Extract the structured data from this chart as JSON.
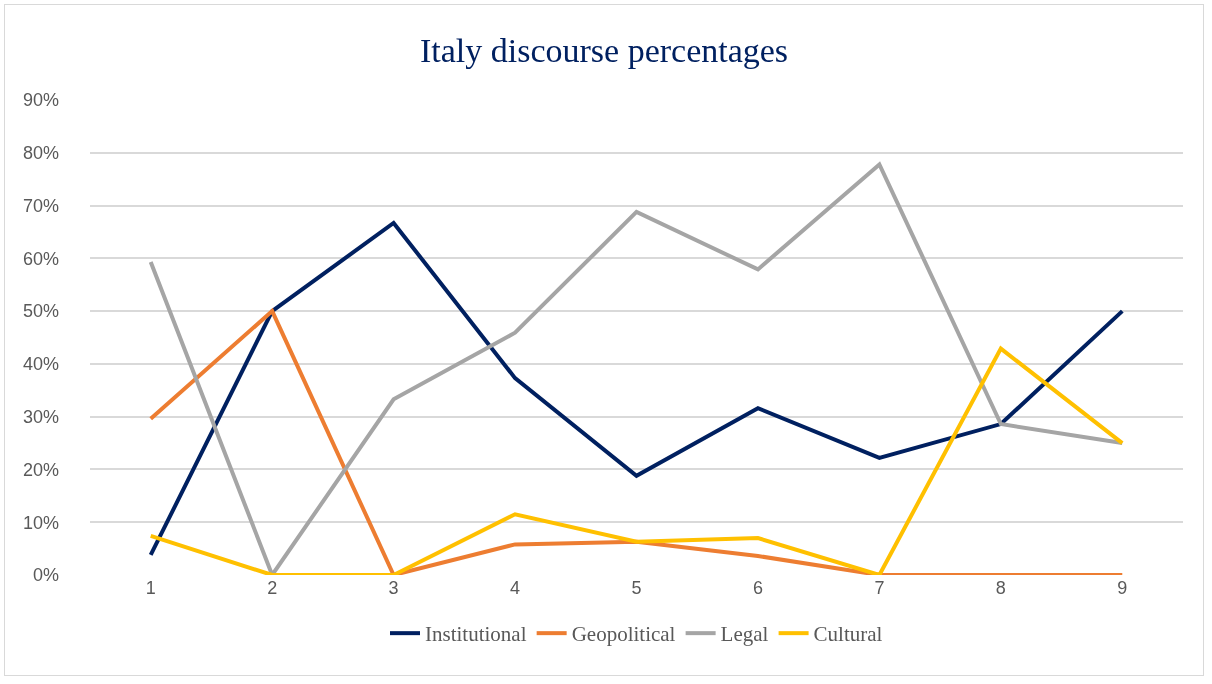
{
  "chart_data": {
    "type": "line",
    "title": "Italy discourse percentages",
    "categories": [
      "1",
      "2",
      "3",
      "4",
      "5",
      "6",
      "7",
      "8",
      "9"
    ],
    "series": [
      {
        "name": "Institutional",
        "color": "#002060",
        "values": [
          3.8,
          50,
          66.7,
          37.3,
          18.8,
          31.6,
          22.2,
          28.6,
          50
        ]
      },
      {
        "name": "Geopolitical",
        "color": "#ed7d31",
        "values": [
          29.6,
          50,
          0,
          5.8,
          6.3,
          3.6,
          0,
          0,
          0
        ]
      },
      {
        "name": "Legal",
        "color": "#a5a5a5",
        "values": [
          59.3,
          0,
          33.3,
          45.9,
          68.8,
          57.9,
          77.8,
          28.6,
          25
        ]
      },
      {
        "name": "Cultural",
        "color": "#ffc000",
        "values": [
          7.4,
          0,
          0,
          11.5,
          6.3,
          7.0,
          0,
          42.9,
          25
        ]
      }
    ],
    "ylim": [
      0,
      90
    ],
    "yticks": [
      {
        "value": 0,
        "label": "0%"
      },
      {
        "value": 10,
        "label": "10%"
      },
      {
        "value": 20,
        "label": "20%"
      },
      {
        "value": 30,
        "label": "30%"
      },
      {
        "value": 40,
        "label": "40%"
      },
      {
        "value": 50,
        "label": "50%"
      },
      {
        "value": 60,
        "label": "60%"
      },
      {
        "value": 70,
        "label": "70%"
      },
      {
        "value": 80,
        "label": "80%"
      },
      {
        "value": 90,
        "label": "90%"
      }
    ],
    "grid": "y",
    "legend": "bottom",
    "marker": "none",
    "line_style": "solid"
  }
}
